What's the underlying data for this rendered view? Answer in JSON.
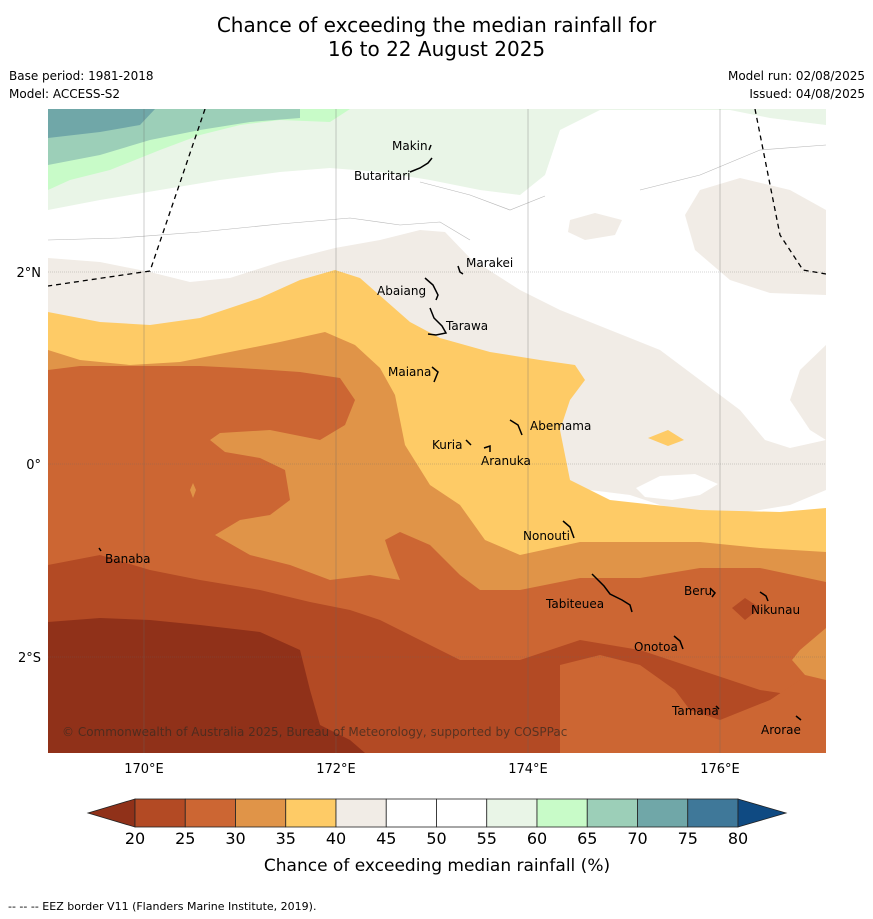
{
  "title": {
    "line1": "Chance of exceeding the median rainfall for",
    "line2": "16 to 22 August 2025"
  },
  "meta": {
    "base_period": "Base period: 1981-2018",
    "model": "Model: ACCESS-S2",
    "model_run": "Model run: 02/08/2025",
    "issued": "Issued: 04/08/2025"
  },
  "map": {
    "lon_labels": [
      "170°E",
      "172°E",
      "174°E",
      "176°E"
    ],
    "lat_labels": [
      "2°N",
      "0°",
      "2°S"
    ],
    "copyright": "© Commonwealth of Australia 2025, Bureau of Meteorology, supported by COSPPac",
    "places": [
      "Makin",
      "Butaritari",
      "Marakei",
      "Abaiang",
      "Tarawa",
      "Maiana",
      "Abemama",
      "Kuria",
      "Aranuka",
      "Nonouti",
      "Banaba",
      "Tabiteuea",
      "Beru",
      "Nikunau",
      "Onotoa",
      "Tamana",
      "Arorae"
    ]
  },
  "legend": {
    "ticks": [
      "20",
      "25",
      "30",
      "35",
      "40",
      "45",
      "50",
      "55",
      "60",
      "65",
      "70",
      "75",
      "80"
    ],
    "colors": [
      "#b34a24",
      "#cc6633",
      "#e09448",
      "#fecb66",
      "#f1ece6",
      "#ffffff",
      "#ffffff",
      "#e9f5e7",
      "#c8fbc8",
      "#9ccfb8",
      "#70a7a8",
      "#3f7899"
    ],
    "under_color": "#903119",
    "over_color": "#0f4a82",
    "label": "Chance of exceeding median rainfall (%)"
  },
  "footer": "--  --  -- EEZ border V11 (Flanders Marine Institute, 2019)."
}
